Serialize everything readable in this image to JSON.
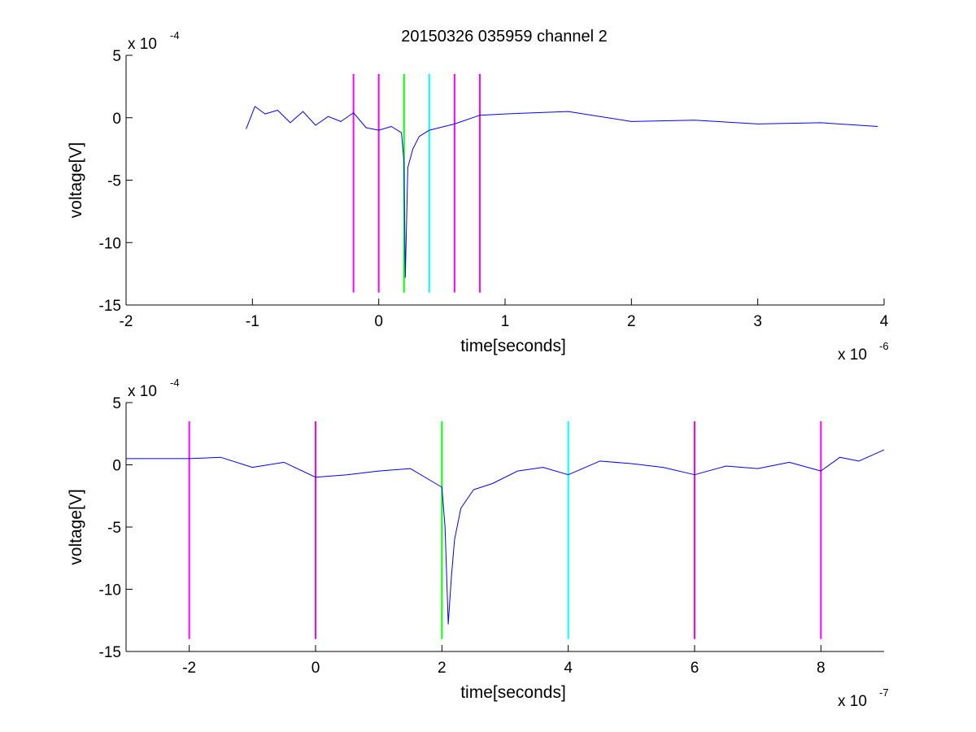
{
  "figure_title": "20150326 035959 channel 2",
  "colors": {
    "trace": "#0000ff",
    "magenta": "#ff00ff",
    "green": "#00ff00",
    "cyan": "#00ffff",
    "axis": "#000000"
  },
  "chart_data": [
    {
      "type": "line",
      "title": "20150326 035959 channel 2",
      "xlabel": "time[seconds]",
      "ylabel": "voltage[V]",
      "x_multiplier": "x 10",
      "x_exponent": "-6",
      "y_multiplier": "x 10",
      "y_exponent": "-4",
      "xlim": [
        -2,
        4
      ],
      "ylim": [
        -15,
        5
      ],
      "x_ticks": [
        -2,
        -1,
        0,
        1,
        2,
        3,
        4
      ],
      "y_ticks": [
        5,
        0,
        -5,
        -10,
        -15
      ],
      "series": [
        {
          "color": "#0000ff",
          "points": [
            [
              -1.05,
              -0.9
            ],
            [
              -0.98,
              0.9
            ],
            [
              -0.9,
              0.3
            ],
            [
              -0.8,
              0.6
            ],
            [
              -0.7,
              -0.4
            ],
            [
              -0.6,
              0.5
            ],
            [
              -0.5,
              -0.6
            ],
            [
              -0.4,
              0.1
            ],
            [
              -0.3,
              -0.3
            ],
            [
              -0.2,
              0.4
            ],
            [
              -0.1,
              -0.8
            ],
            [
              0.0,
              -1.0
            ],
            [
              0.1,
              -0.7
            ],
            [
              0.18,
              -1.2
            ],
            [
              0.2,
              -3.5
            ],
            [
              0.21,
              -12.8
            ],
            [
              0.23,
              -4.0
            ],
            [
              0.27,
              -2.5
            ],
            [
              0.32,
              -1.5
            ],
            [
              0.4,
              -1.0
            ],
            [
              0.6,
              -0.5
            ],
            [
              0.8,
              0.2
            ],
            [
              1.0,
              0.3
            ],
            [
              1.5,
              0.5
            ],
            [
              2.0,
              -0.3
            ],
            [
              2.5,
              -0.2
            ],
            [
              3.0,
              -0.5
            ],
            [
              3.5,
              -0.4
            ],
            [
              3.95,
              -0.7
            ]
          ]
        }
      ],
      "markers": [
        {
          "x": -0.2,
          "color": "#ff00ff",
          "y_range": [
            -14,
            3.5
          ]
        },
        {
          "x": 0.0,
          "color": "#ff00ff",
          "y_range": [
            -14,
            3.5
          ]
        },
        {
          "x": 0.2,
          "color": "#00ff00",
          "y_range": [
            -14,
            3.5
          ]
        },
        {
          "x": 0.4,
          "color": "#00ffff",
          "y_range": [
            -14,
            3.5
          ]
        },
        {
          "x": 0.6,
          "color": "#ff00ff",
          "y_range": [
            -14,
            3.5
          ]
        },
        {
          "x": 0.8,
          "color": "#ff00ff",
          "y_range": [
            -14,
            3.5
          ]
        }
      ]
    },
    {
      "type": "line",
      "title": "",
      "xlabel": "time[seconds]",
      "ylabel": "voltage[V]",
      "x_multiplier": "x 10",
      "x_exponent": "-7",
      "y_multiplier": "x 10",
      "y_exponent": "-4",
      "xlim": [
        -3,
        9
      ],
      "ylim": [
        -15,
        5
      ],
      "x_ticks": [
        -2,
        0,
        2,
        4,
        6,
        8
      ],
      "y_ticks": [
        5,
        0,
        -5,
        -10,
        -15
      ],
      "series": [
        {
          "color": "#0000ff",
          "points": [
            [
              -3.0,
              0.5
            ],
            [
              -2.5,
              0.5
            ],
            [
              -2.0,
              0.5
            ],
            [
              -1.5,
              0.6
            ],
            [
              -1.0,
              -0.2
            ],
            [
              -0.5,
              0.2
            ],
            [
              0.0,
              -1.0
            ],
            [
              0.5,
              -0.8
            ],
            [
              1.0,
              -0.5
            ],
            [
              1.5,
              -0.3
            ],
            [
              1.9,
              -1.5
            ],
            [
              2.0,
              -1.8
            ],
            [
              2.05,
              -5.0
            ],
            [
              2.1,
              -12.8
            ],
            [
              2.15,
              -9.0
            ],
            [
              2.2,
              -6.0
            ],
            [
              2.3,
              -3.5
            ],
            [
              2.5,
              -2.0
            ],
            [
              2.8,
              -1.5
            ],
            [
              3.2,
              -0.5
            ],
            [
              3.6,
              -0.2
            ],
            [
              4.0,
              -0.8
            ],
            [
              4.5,
              0.3
            ],
            [
              5.0,
              0.1
            ],
            [
              5.5,
              -0.2
            ],
            [
              6.0,
              -0.8
            ],
            [
              6.5,
              -0.1
            ],
            [
              7.0,
              -0.3
            ],
            [
              7.5,
              0.2
            ],
            [
              8.0,
              -0.5
            ],
            [
              8.3,
              0.6
            ],
            [
              8.6,
              0.3
            ],
            [
              9.0,
              1.2
            ]
          ]
        }
      ],
      "markers": [
        {
          "x": -2,
          "color": "#ff00ff",
          "y_range": [
            -14,
            3.5
          ]
        },
        {
          "x": 0,
          "color": "#ff00ff",
          "y_range": [
            -14,
            3.5
          ]
        },
        {
          "x": 2,
          "color": "#00ff00",
          "y_range": [
            -14,
            3.5
          ]
        },
        {
          "x": 4,
          "color": "#00ffff",
          "y_range": [
            -14,
            3.5
          ]
        },
        {
          "x": 6,
          "color": "#ff00ff",
          "y_range": [
            -14,
            3.5
          ]
        },
        {
          "x": 8,
          "color": "#ff00ff",
          "y_range": [
            -14,
            3.5
          ]
        }
      ]
    }
  ]
}
